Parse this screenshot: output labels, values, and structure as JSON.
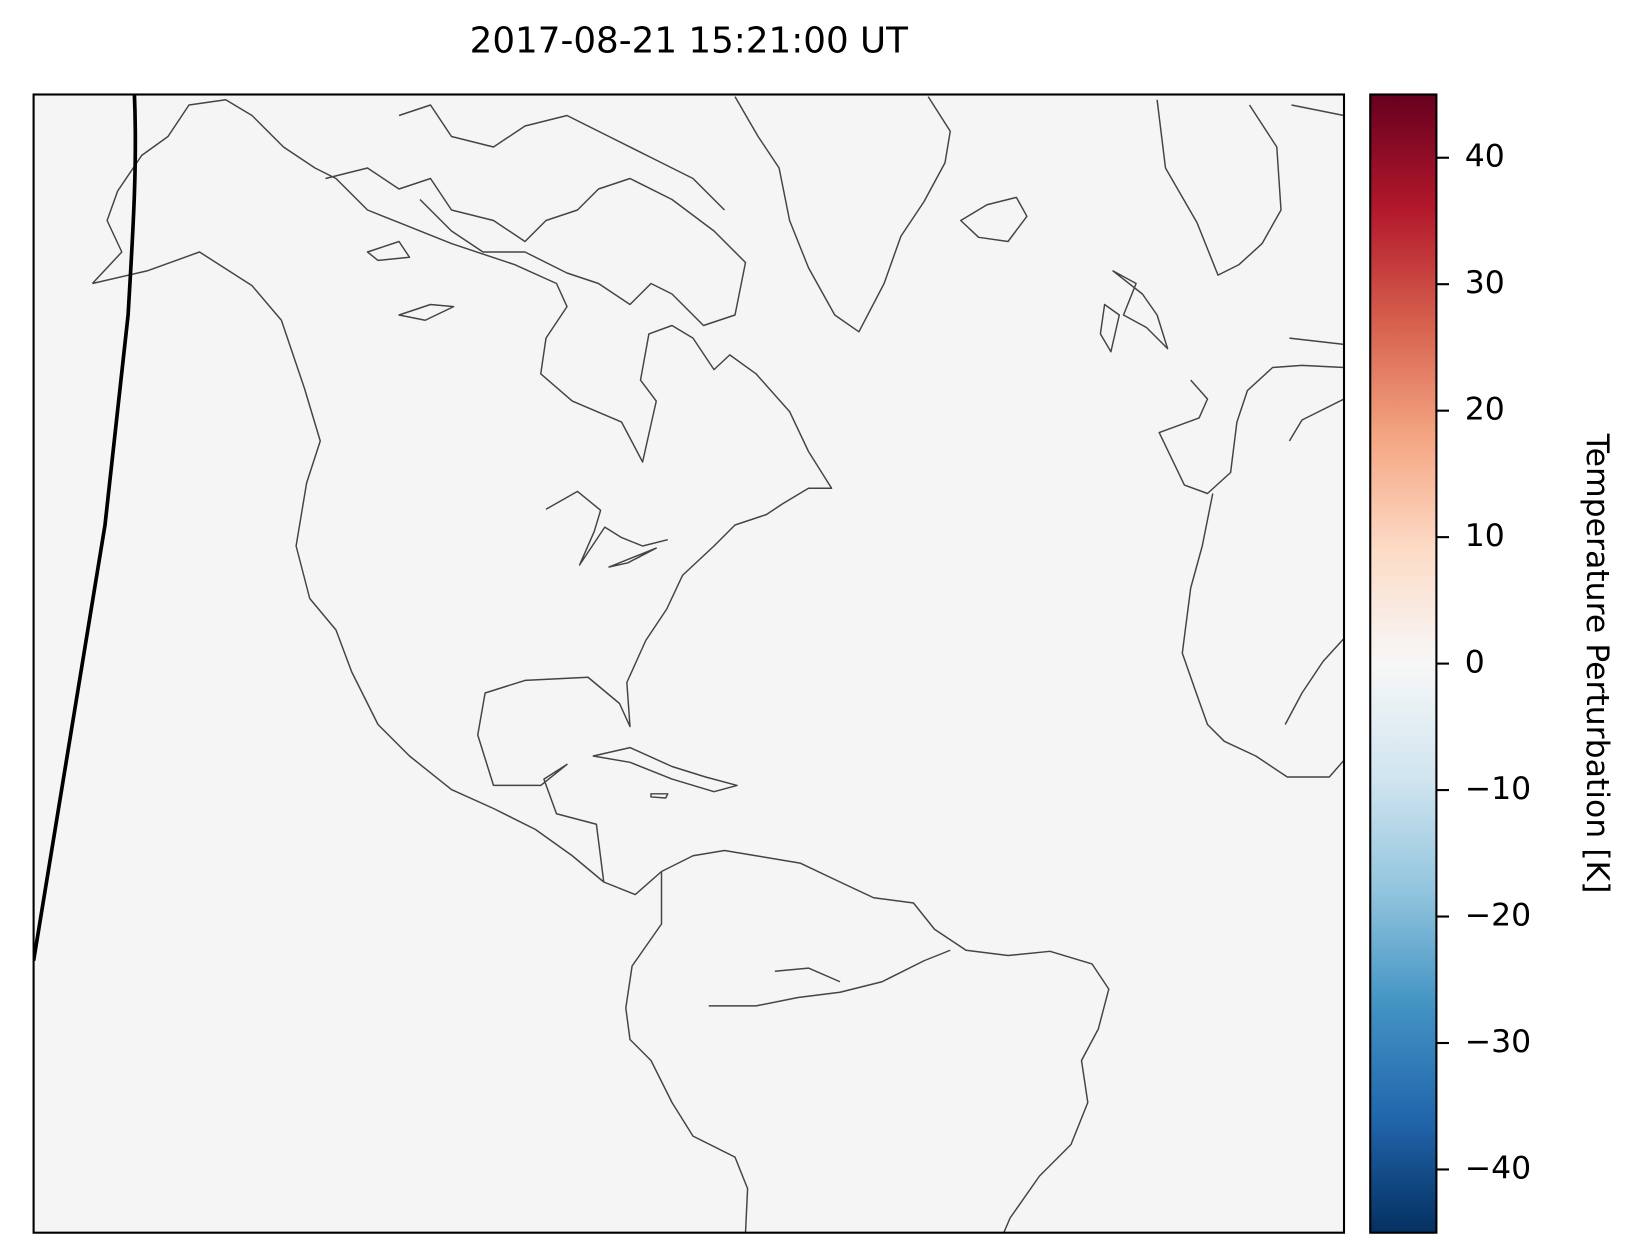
{
  "chart_data": {
    "type": "map",
    "title": "2017-08-21 15:21:00 UT",
    "colorbar": {
      "label": "Temperature Perturbation [K]",
      "lim": [
        -45,
        45
      ],
      "ticks": [
        {
          "value": -40,
          "label": "−40"
        },
        {
          "value": -30,
          "label": "−30"
        },
        {
          "value": -20,
          "label": "−20"
        },
        {
          "value": -10,
          "label": "−10"
        },
        0,
        10,
        20,
        30,
        40
      ]
    }
  }
}
